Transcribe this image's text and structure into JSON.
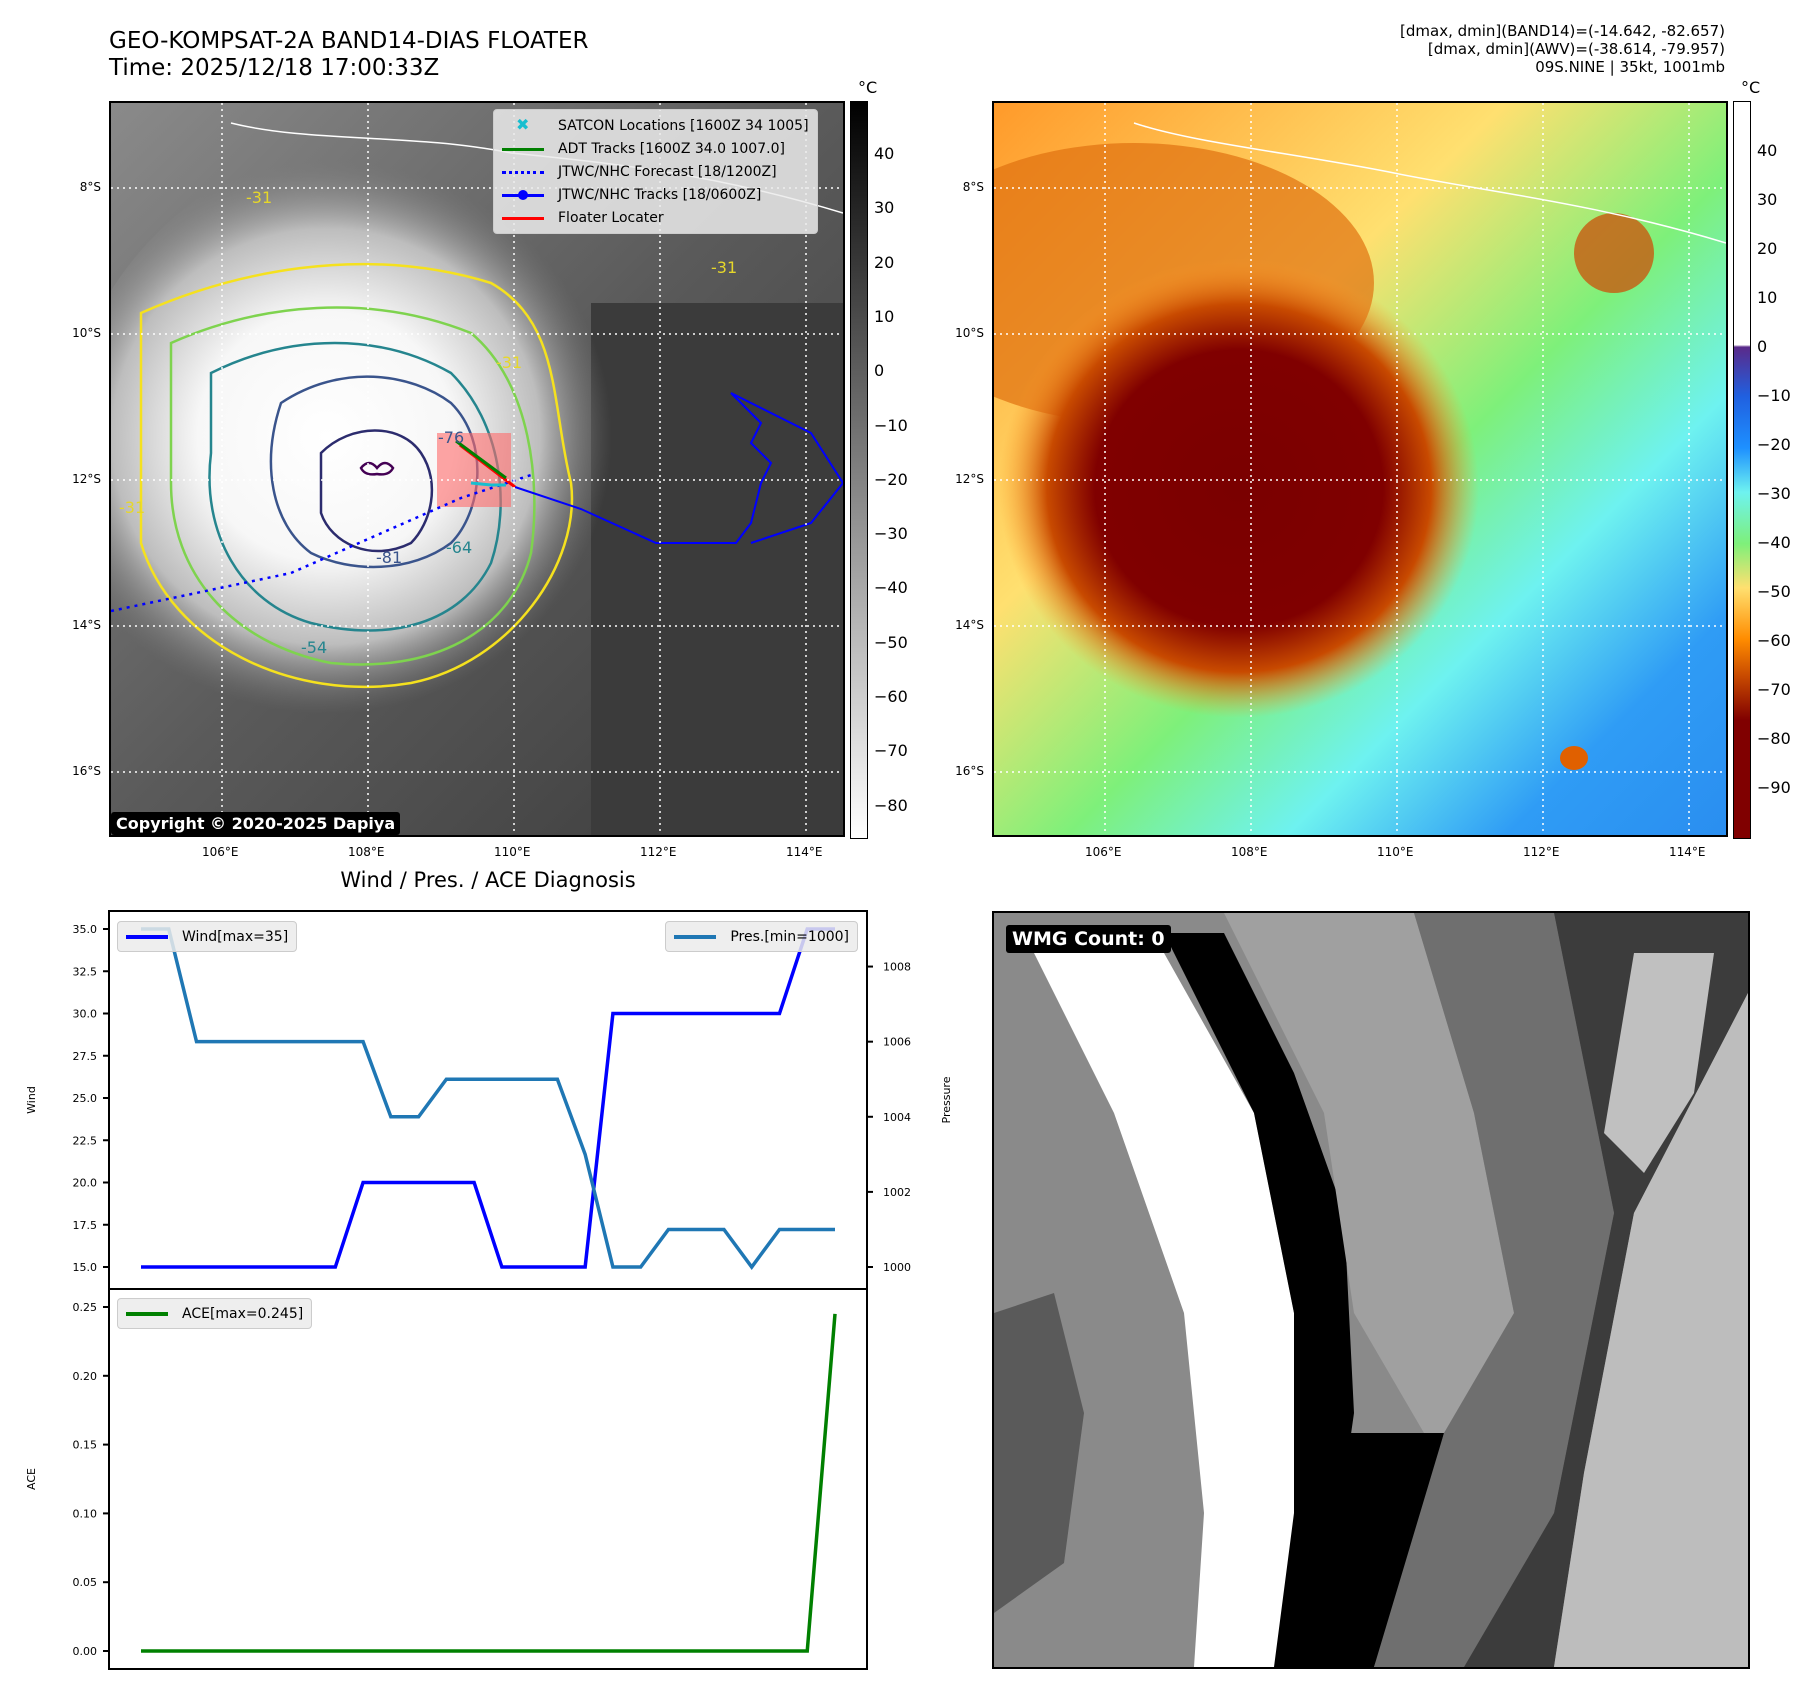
{
  "header": {
    "title_line1": "GEO-KOMPSAT-2A BAND14-DIAS FLOATER",
    "title_line2": "Time: 2025/12/18 17:00:33Z",
    "info_line1": "[dmax, dmin](BAND14)=(-14.642, -82.657)",
    "info_line2": "[dmax, dmin](AWV)=(-38.614, -79.957)",
    "info_line3": "09S.NINE | 35kt, 1001mb"
  },
  "left_map": {
    "lat_labels": [
      "8°S",
      "10°S",
      "12°S",
      "14°S",
      "16°S"
    ],
    "lon_labels": [
      "106°E",
      "108°E",
      "110°E",
      "112°E",
      "114°E"
    ],
    "contour_labels": [
      "-31",
      "-31",
      "-31",
      "-31",
      "-54",
      "-64",
      "-76",
      "-81"
    ],
    "copyright": "Copyright © 2020-2025 Dapiya",
    "colorbar": {
      "unit": "°C",
      "ticks": [
        "40",
        "30",
        "20",
        "10",
        "0",
        "−10",
        "−20",
        "−30",
        "−40",
        "−50",
        "−60",
        "−70",
        "−80"
      ]
    },
    "legend": [
      {
        "label": "SATCON Locations [1600Z 34 1005]",
        "style": "x-marker",
        "color": "#17becf"
      },
      {
        "label": "ADT Tracks [1600Z 34.0 1007.0]",
        "style": "line",
        "color": "#008000"
      },
      {
        "label": "JTWC/NHC Forecast [18/1200Z]",
        "style": "dotted",
        "color": "#0000ff"
      },
      {
        "label": "JTWC/NHC Tracks [18/0600Z]",
        "style": "line-dot",
        "color": "#0000ff"
      },
      {
        "label": "Floater Locater",
        "style": "line",
        "color": "#ff0000"
      }
    ]
  },
  "right_map": {
    "lat_labels": [
      "8°S",
      "10°S",
      "12°S",
      "14°S",
      "16°S"
    ],
    "lon_labels": [
      "106°E",
      "108°E",
      "110°E",
      "112°E",
      "114°E"
    ],
    "colorbar": {
      "unit": "°C",
      "ticks": [
        "40",
        "30",
        "20",
        "10",
        "0",
        "−10",
        "−20",
        "−30",
        "−40",
        "−50",
        "−60",
        "−70",
        "−80",
        "−90"
      ]
    }
  },
  "wmg": {
    "label": "WMG Count: 0"
  },
  "chart_data": [
    {
      "type": "line",
      "title": "Wind / Pres. / ACE Diagnosis",
      "ylabel": "Wind",
      "y2label": "Pressure",
      "ylim": [
        15,
        35
      ],
      "y2lim": [
        1000,
        1009
      ],
      "yticks": [
        "15.0",
        "17.5",
        "20.0",
        "22.5",
        "25.0",
        "27.5",
        "30.0",
        "32.5",
        "35.0"
      ],
      "y2ticks": [
        "1000",
        "1002",
        "1004",
        "1006",
        "1008"
      ],
      "x": [
        0,
        1,
        2,
        3,
        4,
        5,
        6,
        7,
        8,
        9,
        10,
        11,
        12,
        13,
        14,
        15,
        16,
        17,
        18,
        19,
        20,
        21,
        22,
        23,
        24,
        25
      ],
      "series": [
        {
          "name": "Wind[max=35]",
          "axis": "left",
          "color": "#0000ff",
          "values": [
            15,
            15,
            15,
            15,
            15,
            15,
            15,
            15,
            20,
            20,
            20,
            20,
            20,
            15,
            15,
            15,
            15,
            30,
            30,
            30,
            30,
            30,
            30,
            30,
            35,
            35
          ]
        },
        {
          "name": "Pres.[min=1000]",
          "axis": "right",
          "color": "#1f77b4",
          "values": [
            1009,
            1009,
            1006,
            1006,
            1006,
            1006,
            1006,
            1006,
            1006,
            1004,
            1004,
            1005,
            1005,
            1005,
            1005,
            1005,
            1003,
            1000,
            1000,
            1001,
            1001,
            1001,
            1000,
            1001,
            1001,
            1001
          ]
        }
      ]
    },
    {
      "type": "line",
      "ylabel": "ACE",
      "ylim": [
        0,
        0.25
      ],
      "yticks": [
        "0.00",
        "0.05",
        "0.10",
        "0.15",
        "0.20",
        "0.25"
      ],
      "x": [
        0,
        1,
        2,
        3,
        4,
        5,
        6,
        7,
        8,
        9,
        10,
        11,
        12,
        13,
        14,
        15,
        16,
        17,
        18,
        19,
        20,
        21,
        22,
        23,
        24,
        25
      ],
      "series": [
        {
          "name": "ACE[max=0.245]",
          "color": "#008000",
          "values": [
            0,
            0,
            0,
            0,
            0,
            0,
            0,
            0,
            0,
            0,
            0,
            0,
            0,
            0,
            0,
            0,
            0,
            0,
            0,
            0,
            0,
            0,
            0,
            0,
            0,
            0.245
          ]
        }
      ]
    }
  ]
}
